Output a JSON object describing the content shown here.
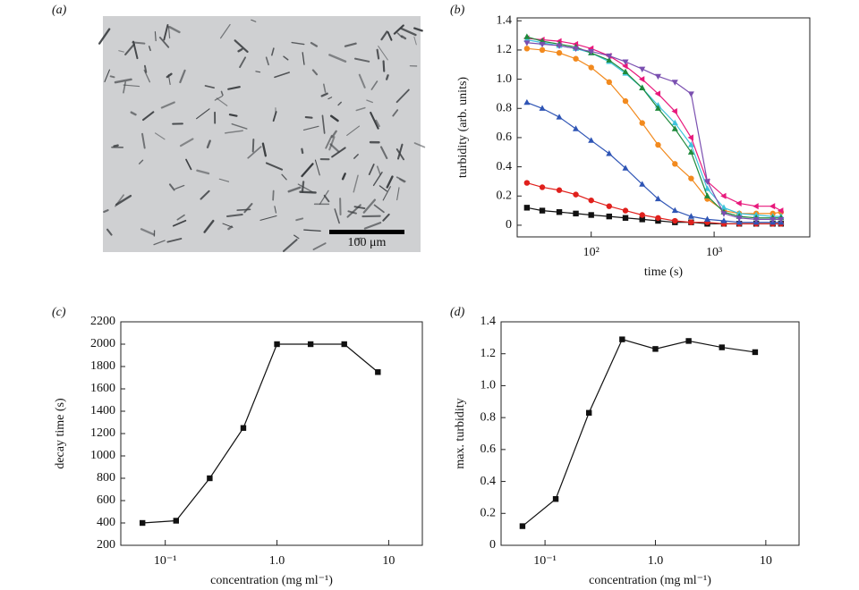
{
  "image": {
    "label": "(a)",
    "scale_bar": "100 μm"
  },
  "chart_data": [
    {
      "type": "line",
      "label": "(b)",
      "xlabel": "time (s)",
      "ylabel": "turbidity (arb. units)",
      "xlog": true,
      "xlim": [
        25,
        6000
      ],
      "ylim": [
        -0.08,
        1.42
      ],
      "xticks": [
        {
          "value": 100,
          "label": "10²"
        },
        {
          "value": 1000,
          "label": "10³"
        }
      ],
      "yticks": [
        0,
        0.2,
        0.4,
        0.6,
        0.8,
        {
          "value": 1,
          "label": "1.0"
        },
        1.2,
        1.4
      ],
      "x": [
        30,
        40,
        55,
        75,
        100,
        140,
        190,
        260,
        350,
        480,
        650,
        880,
        1200,
        1600,
        2200,
        3000,
        3500
      ],
      "series": [
        {
          "color": "#111111",
          "marker": "square",
          "values": [
            0.12,
            0.1,
            0.09,
            0.08,
            0.07,
            0.06,
            0.05,
            0.04,
            0.03,
            0.02,
            0.02,
            0.01,
            0.01,
            0.01,
            0.01,
            0.01,
            0.01
          ]
        },
        {
          "color": "#e0201c",
          "marker": "circle",
          "values": [
            0.29,
            0.26,
            0.24,
            0.21,
            0.17,
            0.13,
            0.1,
            0.07,
            0.05,
            0.03,
            0.02,
            0.02,
            0.01,
            0.01,
            0.01,
            0.01,
            0.01
          ]
        },
        {
          "color": "#2f55b5",
          "marker": "triangle-up",
          "values": [
            0.84,
            0.8,
            0.74,
            0.66,
            0.58,
            0.49,
            0.39,
            0.28,
            0.18,
            0.1,
            0.06,
            0.04,
            0.03,
            0.02,
            0.02,
            0.02,
            0.02
          ]
        },
        {
          "color": "#f28a1e",
          "marker": "circle",
          "values": [
            1.21,
            1.2,
            1.18,
            1.14,
            1.08,
            0.98,
            0.85,
            0.7,
            0.55,
            0.42,
            0.32,
            0.18,
            0.1,
            0.08,
            0.08,
            0.08,
            0.09
          ]
        },
        {
          "color": "#e8197c",
          "marker": "triangle-left",
          "values": [
            1.28,
            1.27,
            1.26,
            1.24,
            1.21,
            1.16,
            1.09,
            1.0,
            0.9,
            0.78,
            0.6,
            0.3,
            0.2,
            0.15,
            0.13,
            0.13,
            0.1
          ]
        },
        {
          "color": "#3ec3dc",
          "marker": "triangle-up",
          "values": [
            1.27,
            1.25,
            1.23,
            1.21,
            1.18,
            1.12,
            1.04,
            0.94,
            0.82,
            0.7,
            0.55,
            0.25,
            0.12,
            0.08,
            0.07,
            0.06,
            0.06
          ]
        },
        {
          "color": "#1f8a3c",
          "marker": "triangle-up",
          "values": [
            1.29,
            1.26,
            1.24,
            1.22,
            1.18,
            1.13,
            1.05,
            0.94,
            0.8,
            0.66,
            0.5,
            0.2,
            0.09,
            0.06,
            0.05,
            0.05,
            0.05
          ]
        },
        {
          "color": "#7a4fb0",
          "marker": "triangle-down",
          "values": [
            1.25,
            1.24,
            1.23,
            1.21,
            1.19,
            1.16,
            1.12,
            1.07,
            1.02,
            0.98,
            0.9,
            0.3,
            0.08,
            0.05,
            0.04,
            0.04,
            0.04
          ]
        }
      ]
    },
    {
      "type": "line",
      "label": "(c)",
      "xlabel": "concentration (mg ml⁻¹)",
      "ylabel": "decay time (s)",
      "xlog": true,
      "xlim": [
        0.04,
        20
      ],
      "ylim": [
        200,
        2200
      ],
      "xticks": [
        {
          "value": 0.1,
          "label": "10⁻¹"
        },
        {
          "value": 1,
          "label": "1.0"
        },
        10
      ],
      "yticks": [
        200,
        400,
        600,
        800,
        1000,
        1200,
        1400,
        1600,
        1800,
        2000,
        2200
      ],
      "x": [
        0.0625,
        0.125,
        0.25,
        0.5,
        1,
        2,
        4,
        8
      ],
      "series": [
        {
          "color": "#111111",
          "marker": "square",
          "values": [
            400,
            420,
            800,
            1250,
            2000,
            2000,
            2000,
            1750
          ]
        }
      ]
    },
    {
      "type": "line",
      "label": "(d)",
      "xlabel": "concentration (mg ml⁻¹)",
      "ylabel": "max. turbidity",
      "xlog": true,
      "xlim": [
        0.04,
        20
      ],
      "ylim": [
        0,
        1.4
      ],
      "xticks": [
        {
          "value": 0.1,
          "label": "10⁻¹"
        },
        {
          "value": 1,
          "label": "1.0"
        },
        10
      ],
      "yticks": [
        0,
        0.2,
        0.4,
        0.6,
        0.8,
        {
          "value": 1,
          "label": "1.0"
        },
        1.2,
        1.4
      ],
      "x": [
        0.0625,
        0.125,
        0.25,
        0.5,
        1,
        2,
        4,
        8
      ],
      "series": [
        {
          "color": "#111111",
          "marker": "square",
          "values": [
            0.12,
            0.29,
            0.83,
            1.29,
            1.23,
            1.28,
            1.24,
            1.21
          ]
        }
      ]
    }
  ]
}
